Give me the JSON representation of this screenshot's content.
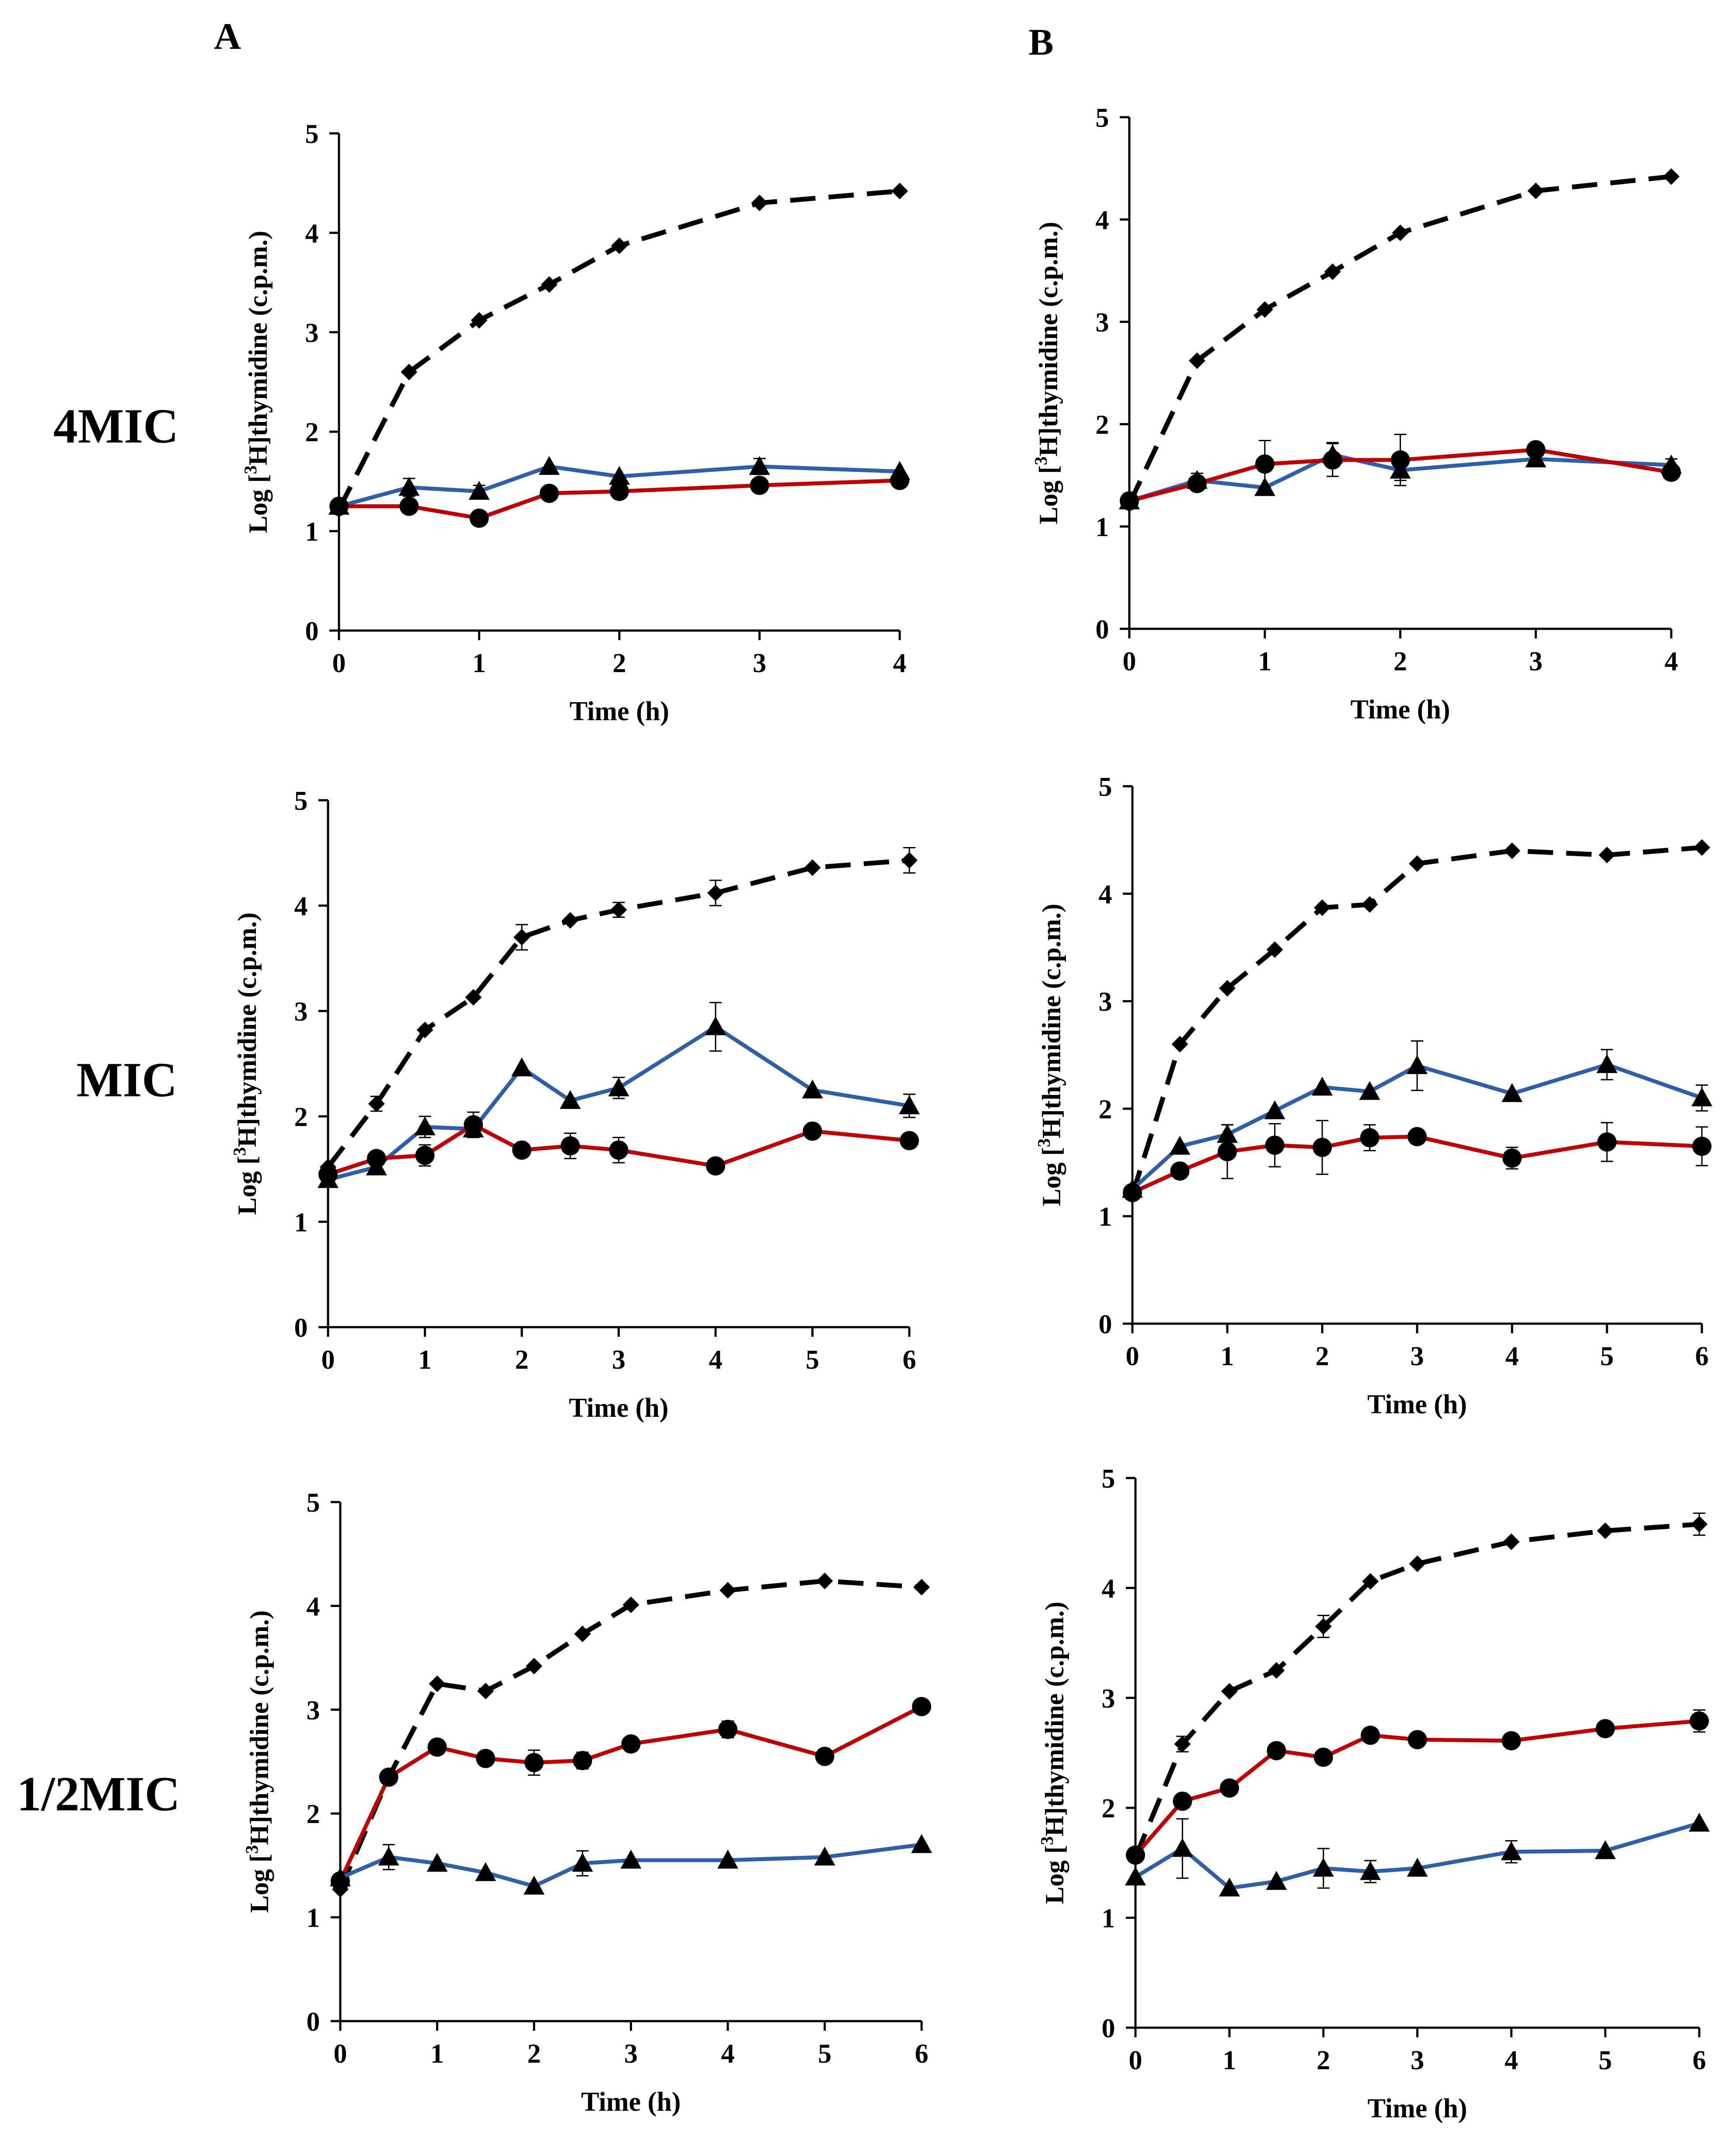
{
  "figure": {
    "column_labels": [
      "A",
      "B"
    ],
    "row_labels": [
      "4MIC",
      "MIC",
      "1/2MIC"
    ],
    "xlabel": "Time (h)",
    "ylabel_prefix": "Log [",
    "ylabel_sup": "3",
    "ylabel_suffix": "H]thymidine  (c.p.m.)",
    "colors": {
      "dashed": "#000000",
      "circles": "#c00000",
      "triangles": "#2e5fa8"
    }
  },
  "chart_data": [
    {
      "panel": "A-4MIC",
      "type": "line",
      "xlabel": "Time (h)",
      "ylabel": "Log [3H]thymidine (c.p.m.)",
      "xlim": [
        0,
        4
      ],
      "ylim": [
        0,
        5
      ],
      "xticks": [
        0,
        1,
        2,
        3,
        4
      ],
      "yticks": [
        0,
        1,
        2,
        3,
        4,
        5
      ],
      "series": [
        {
          "name": "diamonds-dashed",
          "style": "dashed",
          "marker": "diamond",
          "color": "#000000",
          "x": [
            0,
            0.5,
            1,
            1.5,
            2,
            3,
            4
          ],
          "y": [
            1.22,
            2.6,
            3.12,
            3.48,
            3.87,
            4.3,
            4.42
          ],
          "err": [
            0,
            0,
            0,
            0,
            0,
            0,
            0
          ]
        },
        {
          "name": "triangles",
          "style": "solid",
          "marker": "triangle",
          "color": "#2e5fa8",
          "x": [
            0,
            0.5,
            1,
            1.5,
            2,
            3,
            4
          ],
          "y": [
            1.25,
            1.44,
            1.4,
            1.65,
            1.55,
            1.65,
            1.6
          ],
          "err": [
            0,
            0.09,
            0.06,
            0,
            0,
            0.08,
            0
          ]
        },
        {
          "name": "circles",
          "style": "solid",
          "marker": "circle",
          "color": "#c00000",
          "x": [
            0,
            0.5,
            1,
            1.5,
            2,
            3,
            4
          ],
          "y": [
            1.25,
            1.25,
            1.13,
            1.38,
            1.4,
            1.46,
            1.51
          ],
          "err": [
            0,
            0,
            0,
            0,
            0,
            0,
            0
          ]
        }
      ]
    },
    {
      "panel": "B-4MIC",
      "type": "line",
      "xlabel": "Time (h)",
      "ylabel": "Log [3H]thymidine (c.p.m.)",
      "xlim": [
        0,
        4
      ],
      "ylim": [
        0,
        5
      ],
      "xticks": [
        0,
        1,
        2,
        3,
        4
      ],
      "yticks": [
        0,
        1,
        2,
        3,
        4,
        5
      ],
      "series": [
        {
          "name": "diamonds-dashed",
          "style": "dashed",
          "marker": "diamond",
          "color": "#000000",
          "x": [
            0,
            0.5,
            1,
            1.5,
            2,
            3,
            4
          ],
          "y": [
            1.22,
            2.62,
            3.12,
            3.49,
            3.87,
            4.28,
            4.42
          ],
          "err": [
            0,
            0,
            0,
            0,
            0,
            0,
            0
          ]
        },
        {
          "name": "triangles",
          "style": "solid",
          "marker": "triangle",
          "color": "#2e5fa8",
          "x": [
            0,
            0.5,
            1,
            1.5,
            2,
            3,
            4
          ],
          "y": [
            1.25,
            1.45,
            1.38,
            1.7,
            1.55,
            1.66,
            1.6
          ],
          "err": [
            0,
            0.07,
            0,
            0.12,
            0.1,
            0,
            0.06
          ]
        },
        {
          "name": "circles",
          "style": "solid",
          "marker": "circle",
          "color": "#c00000",
          "x": [
            0,
            0.5,
            1,
            1.5,
            2,
            3,
            4
          ],
          "y": [
            1.25,
            1.42,
            1.61,
            1.65,
            1.65,
            1.75,
            1.53
          ],
          "err": [
            0,
            0,
            0.23,
            0.16,
            0.25,
            0,
            0.07
          ]
        }
      ]
    },
    {
      "panel": "A-MIC",
      "type": "line",
      "xlabel": "Time (h)",
      "ylabel": "Log [3H]thymidine (c.p.m.)",
      "xlim": [
        0,
        6
      ],
      "ylim": [
        0,
        5
      ],
      "xticks": [
        0,
        1,
        2,
        3,
        4,
        5,
        6
      ],
      "yticks": [
        0,
        1,
        2,
        3,
        4,
        5
      ],
      "series": [
        {
          "name": "diamonds-dashed",
          "style": "dashed",
          "marker": "diamond",
          "color": "#000000",
          "x": [
            0,
            0.5,
            1,
            1.5,
            2,
            2.5,
            3,
            4,
            5,
            6
          ],
          "y": [
            1.52,
            2.12,
            2.82,
            3.13,
            3.7,
            3.86,
            3.96,
            4.12,
            4.36,
            4.43
          ],
          "err": [
            0,
            0.07,
            0,
            0,
            0.12,
            0,
            0.07,
            0.12,
            0,
            0.12
          ]
        },
        {
          "name": "triangles",
          "style": "solid",
          "marker": "triangle",
          "color": "#2e5fa8",
          "x": [
            0,
            0.5,
            1,
            1.5,
            2,
            2.5,
            3,
            4,
            5,
            6
          ],
          "y": [
            1.4,
            1.52,
            1.9,
            1.88,
            2.46,
            2.15,
            2.27,
            2.85,
            2.25,
            2.1
          ],
          "err": [
            0,
            0,
            0.1,
            0,
            0,
            0,
            0.1,
            0.23,
            0,
            0.11
          ]
        },
        {
          "name": "circles",
          "style": "solid",
          "marker": "circle",
          "color": "#c00000",
          "x": [
            0,
            0.5,
            1,
            1.5,
            2,
            2.5,
            3,
            4,
            5,
            6
          ],
          "y": [
            1.45,
            1.6,
            1.63,
            1.92,
            1.68,
            1.72,
            1.68,
            1.53,
            1.86,
            1.77
          ],
          "err": [
            0,
            0,
            0.1,
            0.12,
            0,
            0.12,
            0.12,
            0,
            0,
            0
          ]
        }
      ]
    },
    {
      "panel": "B-MIC",
      "type": "line",
      "xlabel": "Time (h)",
      "ylabel": "Log [3H]thymidine (c.p.m.)",
      "xlim": [
        0,
        6
      ],
      "ylim": [
        0,
        5
      ],
      "xticks": [
        0,
        1,
        2,
        3,
        4,
        5,
        6
      ],
      "yticks": [
        0,
        1,
        2,
        3,
        4,
        5
      ],
      "series": [
        {
          "name": "diamonds-dashed",
          "style": "dashed",
          "marker": "diamond",
          "color": "#000000",
          "x": [
            0,
            0.5,
            1,
            1.5,
            2,
            2.5,
            3,
            4,
            5,
            6
          ],
          "y": [
            1.2,
            2.6,
            3.12,
            3.48,
            3.87,
            3.9,
            4.28,
            4.4,
            4.36,
            4.43
          ],
          "err": [
            0,
            0,
            0,
            0,
            0,
            0,
            0,
            0,
            0,
            0
          ]
        },
        {
          "name": "triangles",
          "style": "solid",
          "marker": "triangle",
          "color": "#2e5fa8",
          "x": [
            0,
            0.5,
            1,
            1.5,
            2,
            2.5,
            3,
            4,
            5,
            6
          ],
          "y": [
            1.25,
            1.65,
            1.76,
            1.98,
            2.2,
            2.16,
            2.4,
            2.14,
            2.41,
            2.1
          ],
          "err": [
            0,
            0,
            0.09,
            0,
            0,
            0,
            0.23,
            0,
            0.14,
            0.12
          ]
        },
        {
          "name": "circles",
          "style": "solid",
          "marker": "circle",
          "color": "#c00000",
          "x": [
            0,
            0.5,
            1,
            1.5,
            2,
            2.5,
            3,
            4,
            5,
            6
          ],
          "y": [
            1.22,
            1.42,
            1.6,
            1.66,
            1.64,
            1.73,
            1.74,
            1.54,
            1.69,
            1.65
          ],
          "err": [
            0,
            0,
            0.25,
            0.2,
            0.25,
            0.12,
            0,
            0.1,
            0.18,
            0.18
          ]
        }
      ]
    },
    {
      "panel": "A-1/2MIC",
      "type": "line",
      "xlabel": "Time (h)",
      "ylabel": "Log [3H]thymidine (c.p.m.)",
      "xlim": [
        0,
        6
      ],
      "ylim": [
        0,
        5
      ],
      "xticks": [
        0,
        1,
        2,
        3,
        4,
        5,
        6
      ],
      "yticks": [
        0,
        1,
        2,
        3,
        4,
        5
      ],
      "series": [
        {
          "name": "diamonds-dashed",
          "style": "dashed",
          "marker": "diamond",
          "color": "#000000",
          "x": [
            0,
            0.5,
            1,
            1.5,
            2,
            2.5,
            3,
            4,
            5,
            6
          ],
          "y": [
            1.27,
            2.35,
            3.25,
            3.18,
            3.42,
            3.73,
            4.01,
            4.15,
            4.24,
            4.18
          ],
          "err": [
            0,
            0,
            0,
            0,
            0,
            0,
            0,
            0,
            0,
            0
          ]
        },
        {
          "name": "circles",
          "style": "solid",
          "marker": "circle",
          "color": "#c00000",
          "x": [
            0,
            0.5,
            1,
            1.5,
            2,
            2.5,
            3,
            4,
            5,
            6
          ],
          "y": [
            1.35,
            2.35,
            2.64,
            2.53,
            2.49,
            2.51,
            2.67,
            2.81,
            2.55,
            3.03
          ],
          "err": [
            0,
            0,
            0,
            0,
            0.12,
            0.08,
            0,
            0.08,
            0,
            0
          ]
        },
        {
          "name": "triangles",
          "style": "solid",
          "marker": "triangle",
          "color": "#2e5fa8",
          "x": [
            0,
            0.5,
            1,
            1.5,
            2,
            2.5,
            3,
            4,
            5,
            6
          ],
          "y": [
            1.38,
            1.58,
            1.52,
            1.43,
            1.3,
            1.52,
            1.55,
            1.55,
            1.58,
            1.7
          ],
          "err": [
            0,
            0.12,
            0,
            0,
            0,
            0.12,
            0,
            0,
            0,
            0
          ]
        }
      ]
    },
    {
      "panel": "B-1/2MIC",
      "type": "line",
      "xlabel": "Time (h)",
      "ylabel": "Log [3H]thymidine (c.p.m.)",
      "xlim": [
        0,
        6
      ],
      "ylim": [
        0,
        5
      ],
      "xticks": [
        0,
        1,
        2,
        3,
        4,
        5,
        6
      ],
      "yticks": [
        0,
        1,
        2,
        3,
        4,
        5
      ],
      "series": [
        {
          "name": "diamonds-dashed",
          "style": "dashed",
          "marker": "diamond",
          "color": "#000000",
          "x": [
            0,
            0.5,
            1,
            1.5,
            2,
            2.5,
            3,
            4,
            5,
            6
          ],
          "y": [
            1.55,
            2.58,
            3.06,
            3.25,
            3.65,
            4.06,
            4.22,
            4.42,
            4.52,
            4.58
          ],
          "err": [
            0,
            0.07,
            0,
            0,
            0.1,
            0,
            0,
            0,
            0,
            0.1
          ]
        },
        {
          "name": "circles",
          "style": "solid",
          "marker": "circle",
          "color": "#c00000",
          "x": [
            0,
            0.5,
            1,
            1.5,
            2,
            2.5,
            3,
            4,
            5,
            6
          ],
          "y": [
            1.57,
            2.06,
            2.18,
            2.52,
            2.46,
            2.66,
            2.62,
            2.61,
            2.72,
            2.79
          ],
          "err": [
            0,
            0,
            0,
            0,
            0,
            0,
            0,
            0,
            0,
            0.1
          ]
        },
        {
          "name": "triangles",
          "style": "solid",
          "marker": "triangle",
          "color": "#2e5fa8",
          "x": [
            0,
            0.5,
            1,
            1.5,
            2,
            2.5,
            3,
            4,
            5,
            6
          ],
          "y": [
            1.37,
            1.63,
            1.27,
            1.33,
            1.45,
            1.42,
            1.45,
            1.6,
            1.61,
            1.86
          ],
          "err": [
            0,
            0.27,
            0,
            0,
            0.18,
            0.1,
            0,
            0.1,
            0,
            0
          ]
        }
      ]
    }
  ]
}
